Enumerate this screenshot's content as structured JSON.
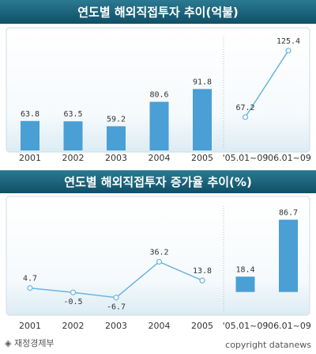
{
  "chart_data": [
    {
      "type": "bar",
      "title": "연도별 해외직접투자 추이(억불)",
      "categories": [
        "2001",
        "2002",
        "2003",
        "2004",
        "2005",
        "'05.01~09",
        "'06.01~09"
      ],
      "series": [
        {
          "type": "bar",
          "color": "#4a9fd4",
          "values": [
            63.8,
            63.5,
            59.2,
            80.6,
            91.8,
            null,
            null
          ]
        },
        {
          "type": "line",
          "color": "#6ab4e4",
          "values": [
            null,
            null,
            null,
            null,
            null,
            67.2,
            125.4
          ]
        }
      ],
      "ylim": [
        38,
        142
      ]
    },
    {
      "type": "bar",
      "title": "연도별 해외직접투자 증가율 추이(%)",
      "categories": [
        "2001",
        "2002",
        "2003",
        "2004",
        "2005",
        "'05.01~09",
        "'06.01~09"
      ],
      "series": [
        {
          "type": "line",
          "color": "#6ab4e4",
          "values": [
            4.7,
            -0.5,
            -6.7,
            36.2,
            13.8,
            null,
            null
          ]
        },
        {
          "type": "bar",
          "color": "#4a9fd4",
          "values": [
            null,
            null,
            null,
            null,
            null,
            18.4,
            86.7
          ]
        }
      ],
      "ylim": [
        -25,
        108
      ]
    }
  ],
  "footer": {
    "source": "◈ 재정경제부",
    "copyright": "copyright datanews"
  }
}
